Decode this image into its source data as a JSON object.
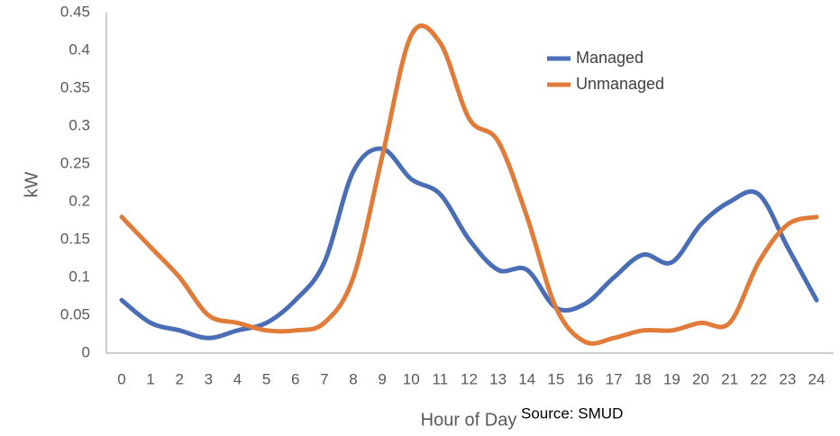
{
  "chart_data": {
    "type": "line",
    "x_label": "Hour of Day",
    "y_label": "kW",
    "annotation": "Source: SMUD",
    "x": [
      0,
      1,
      2,
      3,
      4,
      5,
      6,
      7,
      8,
      9,
      10,
      11,
      12,
      13,
      14,
      15,
      16,
      17,
      18,
      19,
      20,
      21,
      22,
      23,
      24
    ],
    "xlim": [
      0,
      24
    ],
    "xticks": [
      0,
      1,
      2,
      3,
      4,
      5,
      6,
      7,
      8,
      9,
      10,
      11,
      12,
      13,
      14,
      15,
      16,
      17,
      18,
      19,
      20,
      21,
      22,
      23,
      24
    ],
    "ylim": [
      0,
      0.45
    ],
    "yticks": [
      0,
      0.05,
      0.1,
      0.15,
      0.2,
      0.25,
      0.3,
      0.35,
      0.4,
      0.45
    ],
    "grid": false,
    "legend": "upper right",
    "series": [
      {
        "name": "Managed",
        "color": "#4a6eb5",
        "values": [
          0.07,
          0.04,
          0.03,
          0.02,
          0.03,
          0.04,
          0.07,
          0.12,
          0.24,
          0.27,
          0.23,
          0.21,
          0.15,
          0.11,
          0.11,
          0.06,
          0.065,
          0.1,
          0.13,
          0.12,
          0.17,
          0.2,
          0.21,
          0.14,
          0.07
        ]
      },
      {
        "name": "Unmanaged",
        "color": "#e07b39",
        "values": [
          0.18,
          0.14,
          0.1,
          0.05,
          0.04,
          0.03,
          0.03,
          0.04,
          0.1,
          0.26,
          0.42,
          0.41,
          0.31,
          0.28,
          0.18,
          0.06,
          0.015,
          0.02,
          0.03,
          0.03,
          0.04,
          0.04,
          0.12,
          0.17,
          0.18
        ]
      }
    ]
  }
}
